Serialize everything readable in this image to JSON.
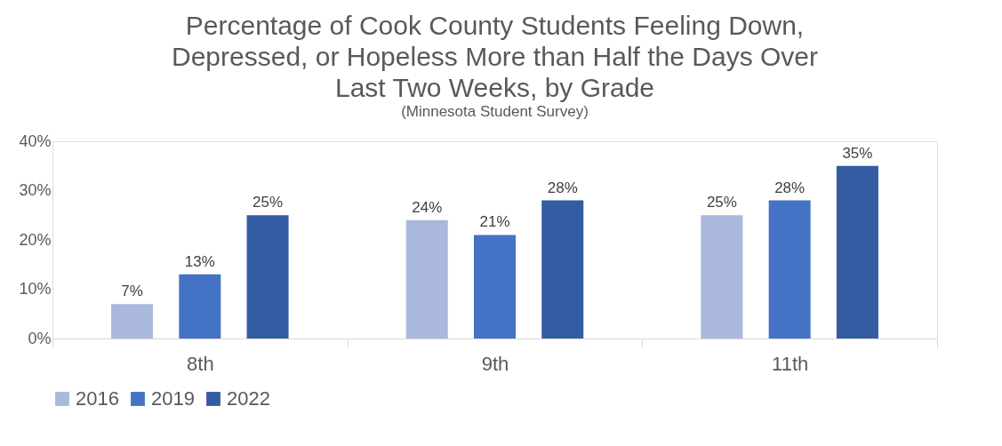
{
  "chart_data": {
    "type": "bar",
    "title": "Percentage of Cook County Students Feeling Down, Depressed, or Hopeless More than Half the Days Over Last Two Weeks, by Grade",
    "subtitle": "(Minnesota Student Survey)",
    "categories": [
      "8th",
      "9th",
      "11th"
    ],
    "series": [
      {
        "name": "2016",
        "color": "#a9b8dc",
        "values": [
          7,
          24,
          25
        ],
        "value_labels": [
          "7%",
          "24%",
          "25%"
        ]
      },
      {
        "name": "2019",
        "color": "#4472c4",
        "values": [
          13,
          21,
          28
        ],
        "value_labels": [
          "13%",
          "21%",
          "28%"
        ]
      },
      {
        "name": "2022",
        "color": "#335ca3",
        "values": [
          25,
          28,
          35
        ],
        "value_labels": [
          "25%",
          "28%",
          "35%"
        ]
      }
    ],
    "ylim": [
      0,
      40
    ],
    "yticks": [
      {
        "value": 0,
        "label": "0%"
      },
      {
        "value": 10,
        "label": "10%"
      },
      {
        "value": 20,
        "label": "20%"
      },
      {
        "value": 30,
        "label": "30%"
      },
      {
        "value": 40,
        "label": "40%"
      }
    ],
    "grid": false,
    "legend": "bottom"
  }
}
